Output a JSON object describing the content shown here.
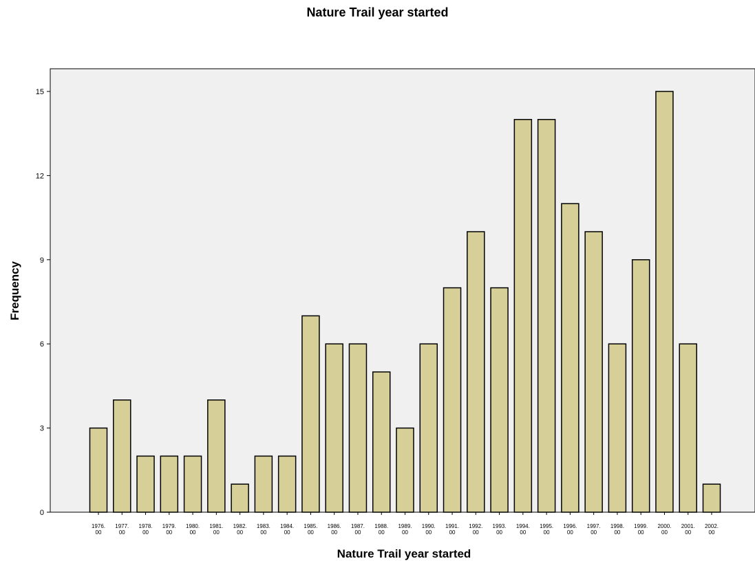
{
  "chart_data": {
    "type": "bar",
    "title": "Nature Trail year started",
    "xlabel": "Nature Trail year started",
    "ylabel": "Frequency",
    "ylim": [
      0,
      15
    ],
    "yticks": [
      0,
      3,
      6,
      9,
      12,
      15
    ],
    "categories": [
      "1976.00",
      "1977.00",
      "1978.00",
      "1979.00",
      "1980.00",
      "1981.00",
      "1982.00",
      "1983.00",
      "1984.00",
      "1985.00",
      "1986.00",
      "1987.00",
      "1988.00",
      "1989.00",
      "1990.00",
      "1991.00",
      "1992.00",
      "1993.00",
      "1994.00",
      "1995.00",
      "1996.00",
      "1997.00",
      "1998.00",
      "1999.00",
      "2000.00",
      "2001.00",
      "2002.00"
    ],
    "values": [
      3,
      4,
      2,
      2,
      2,
      4,
      1,
      2,
      2,
      7,
      6,
      6,
      5,
      3,
      6,
      8,
      10,
      8,
      14,
      14,
      11,
      10,
      6,
      9,
      15,
      6,
      1
    ],
    "grid": false,
    "colors": {
      "bar_fill": "#d6cf97",
      "bar_stroke": "#000000",
      "plot_bg": "#f0f0f0"
    }
  }
}
